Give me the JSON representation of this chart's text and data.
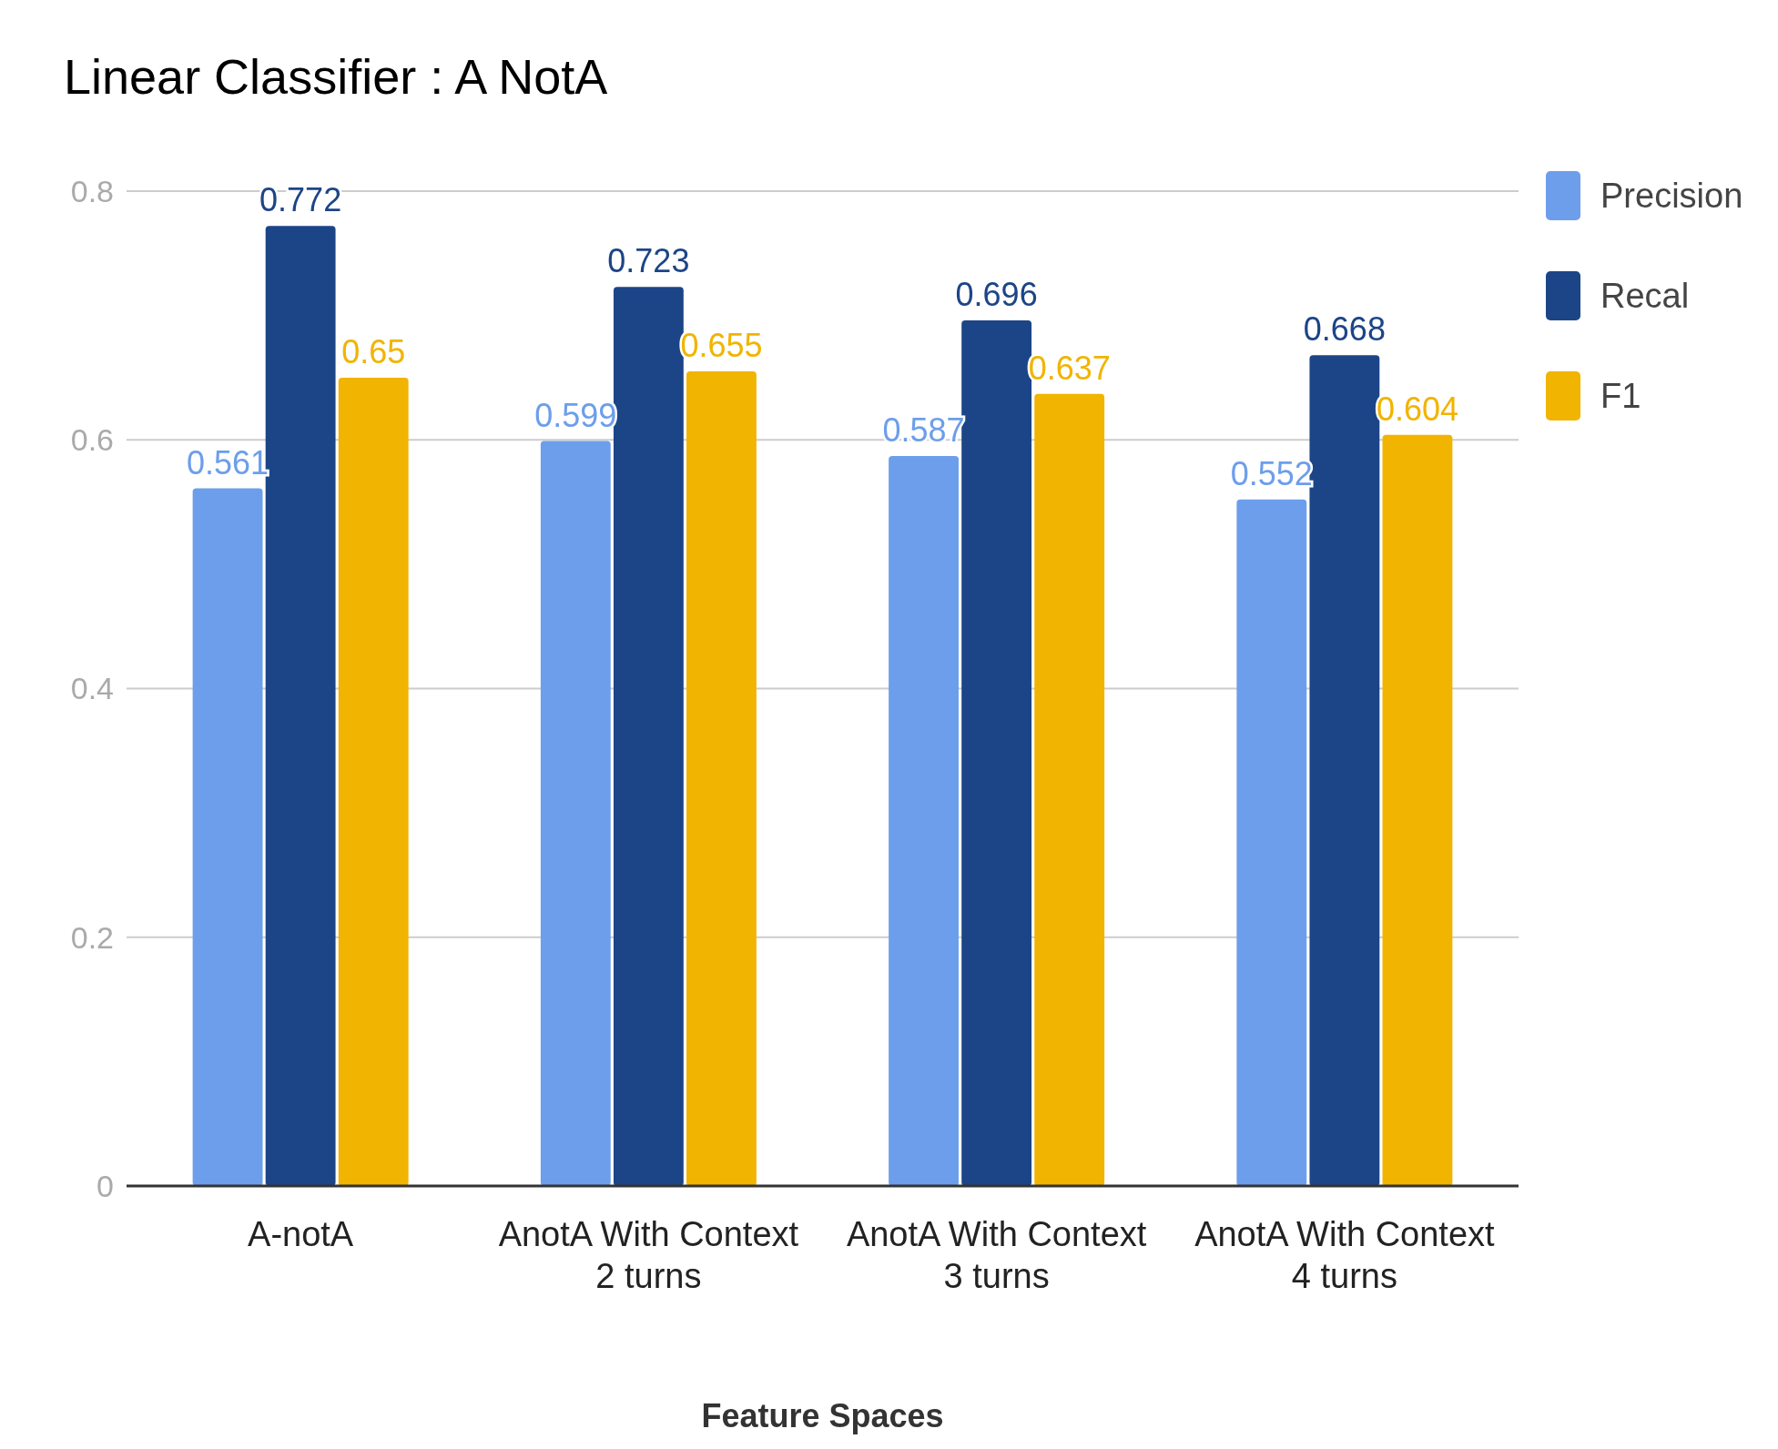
{
  "chart_data": {
    "type": "bar",
    "title": "Linear Classifier : A NotA",
    "xlabel": "Feature Spaces",
    "categories": [
      "A-notA",
      "AnotA With Context 2 turns",
      "AnotA With Context 3 turns",
      "AnotA With Context 4 turns"
    ],
    "series": [
      {
        "name": "Precision",
        "color": "#6d9eeb",
        "values": [
          0.561,
          0.599,
          0.587,
          0.552
        ]
      },
      {
        "name": "Recal",
        "color": "#1c4587",
        "values": [
          0.772,
          0.723,
          0.696,
          0.668
        ]
      },
      {
        "name": "F1",
        "color": "#f1b400",
        "values": [
          0.65,
          0.655,
          0.637,
          0.604
        ]
      }
    ],
    "ylim": [
      0,
      0.8
    ],
    "yticks": [
      0,
      0.2,
      0.4,
      0.6,
      0.8
    ],
    "grid": "y",
    "legend": "right",
    "data_labels": true
  }
}
